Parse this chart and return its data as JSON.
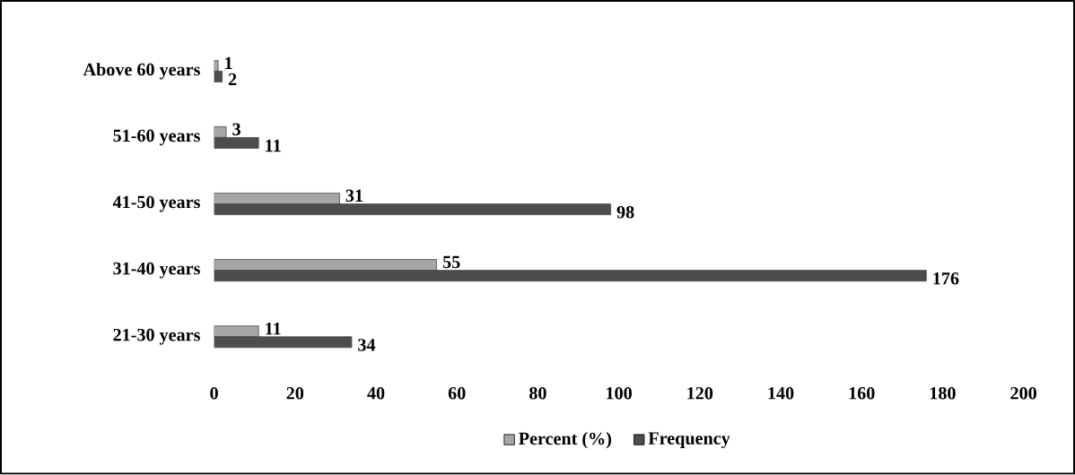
{
  "chart_data": {
    "type": "bar",
    "orientation": "horizontal",
    "categories": [
      "Above 60 years",
      "51-60 years",
      "41-50 years",
      "31-40 years",
      "21-30 years"
    ],
    "series": [
      {
        "name": "Percent (%)",
        "color": "#a6a6a6",
        "values": [
          1,
          3,
          31,
          55,
          11
        ]
      },
      {
        "name": "Frequency",
        "color": "#4d4d4d",
        "values": [
          2,
          11,
          98,
          176,
          34
        ]
      }
    ],
    "xlim": [
      0,
      200
    ],
    "xticks": [
      0,
      20,
      40,
      60,
      80,
      100,
      120,
      140,
      160,
      180,
      200
    ],
    "data_labels": true,
    "legend": "bottom",
    "grid": false
  }
}
